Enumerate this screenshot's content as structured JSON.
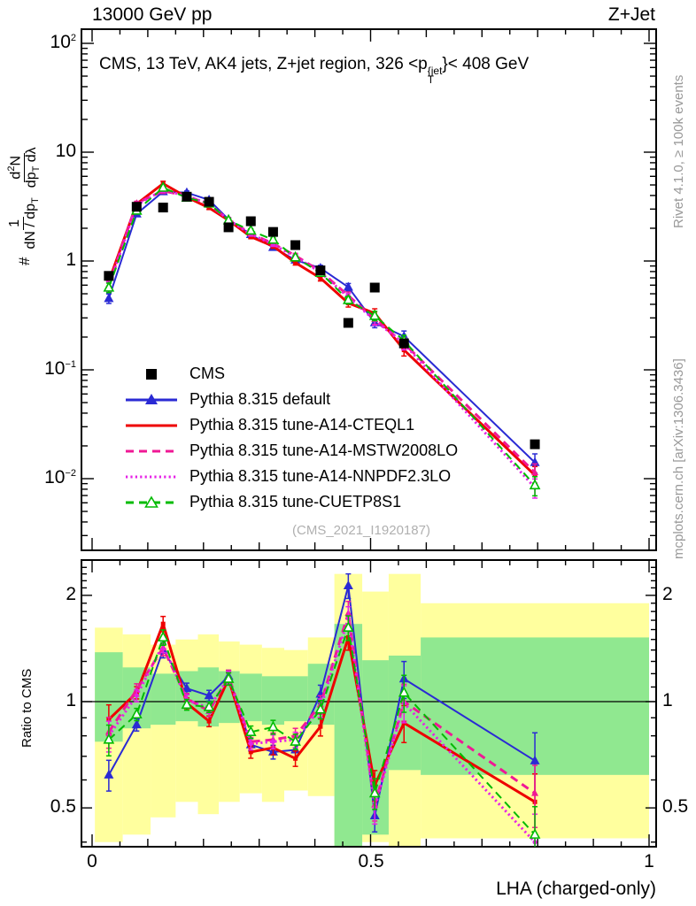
{
  "header": {
    "beam": "13000 GeV pp",
    "process": "Z+Jet"
  },
  "title": {
    "pre": "CMS, 13 TeV, AK4 jets, Z+jet region, 326 <p",
    "sup": "{jet",
    "sub": "T",
    "post": "}< 408 GeV"
  },
  "watermark": "(CMS_2021_I1920187)",
  "side_texts": {
    "rivet": "Rivet 4.1.0, ≥ 100k events",
    "mcplots": "mcplots.cern.ch [arXiv:1306.3436]"
  },
  "y_axis_label": {
    "hash": "#",
    "f1_num": "1",
    "f1_den_pre": "dN / dp",
    "f1_den_sub": "T",
    "f2_num_pre": "d",
    "f2_num_sup": "2",
    "f2_num_post": "N",
    "f2_den_pre": "dp",
    "f2_den_sub": "T",
    "f2_den_post": " dλ"
  },
  "ratio_axis_label": "Ratio to CMS",
  "x_axis_label": "LHA (charged-only)",
  "axes": {
    "main_y_tick_labels": [
      {
        "base": "10",
        "exp": "2",
        "value": 100
      },
      {
        "base": "10",
        "exp": "",
        "value": 10
      },
      {
        "base": "1",
        "exp": "",
        "value": 1
      },
      {
        "base": "10",
        "exp": "−1",
        "value": 0.1
      },
      {
        "base": "10",
        "exp": "−2",
        "value": 0.01
      }
    ],
    "ratio_tick_labels": [
      {
        "text": "2",
        "value": 2
      },
      {
        "text": "1",
        "value": 1
      },
      {
        "text": "0.5",
        "value": 0.5
      }
    ],
    "x_tick_labels": [
      {
        "text": "0",
        "value": 0
      },
      {
        "text": "0.5",
        "value": 0.5
      },
      {
        "text": "1",
        "value": 1
      }
    ]
  },
  "legend": {
    "items": [
      {
        "label": "CMS",
        "color": "#000000",
        "line": "none",
        "marker": "square-filled"
      },
      {
        "label": "Pythia 8.315 default",
        "color": "#2a2ad4",
        "line": "solid",
        "marker": "triangle-filled"
      },
      {
        "label": "Pythia 8.315 tune-A14-CTEQL1",
        "color": "#ee0000",
        "line": "solid",
        "marker": "none"
      },
      {
        "label": "Pythia 8.315 tune-A14-MSTW2008LO",
        "color": "#f01895",
        "line": "dashed",
        "marker": "none"
      },
      {
        "label": "Pythia 8.315 tune-A14-NNPDF2.3LO",
        "color": "#e622e6",
        "line": "dotted",
        "marker": "none"
      },
      {
        "label": "Pythia 8.315 tune-CUETP8S1",
        "color": "#00bb00",
        "line": "dashed",
        "marker": "triangle-open"
      }
    ]
  },
  "chart_data": {
    "type": "line",
    "title": "CMS, 13 TeV, AK4 jets, Z+jet region, 326 < pT{jet} < 408 GeV",
    "xlabel": "LHA (charged-only)",
    "ylabel": "# 1/(dN/dpT) d2N/(dpT dlambda)",
    "ratio_ylabel": "Ratio to CMS",
    "x_range": [
      0,
      1
    ],
    "main_y_log_range": [
      0.0022,
      135
    ],
    "ratio_y_log_range": [
      0.388,
      2.52
    ],
    "bin_edges": [
      0.005,
      0.055,
      0.105,
      0.15,
      0.19,
      0.2275,
      0.265,
      0.305,
      0.345,
      0.3875,
      0.435,
      0.485,
      0.5325,
      0.59,
      1.0
    ],
    "bin_centers": [
      0.03,
      0.08,
      0.1275,
      0.17,
      0.21,
      0.245,
      0.285,
      0.325,
      0.365,
      0.41,
      0.46,
      0.5075,
      0.56,
      0.795
    ],
    "cms": {
      "name": "CMS",
      "color": "#000000",
      "values": [
        0.73,
        3.15,
        3.1,
        3.9,
        3.5,
        2.04,
        2.32,
        1.85,
        1.4,
        0.82,
        0.27,
        0.57,
        0.175,
        0.0207
      ]
    },
    "series": [
      {
        "name": "Pythia 8.315 default",
        "color": "#2a2ad4",
        "dash": "solid",
        "marker": "triangle-filled",
        "width": 2,
        "ratios": [
          0.62,
          0.86,
          1.4,
          1.09,
          1.04,
          1.18,
          0.755,
          0.72,
          0.73,
          1.05,
          2.13,
          0.475,
          1.16,
          0.68
        ]
      },
      {
        "name": "Pythia 8.315 tune-A14-CTEQL1",
        "color": "#ee0000",
        "dash": "solid",
        "marker": "square-small",
        "width": 3,
        "ratios": [
          0.89,
          1.06,
          1.66,
          0.99,
          0.88,
          1.16,
          0.72,
          0.74,
          0.69,
          0.85,
          1.52,
          0.58,
          0.87,
          0.52
        ]
      },
      {
        "name": "Pythia 8.315 tune-A14-MSTW2008LO",
        "color": "#f01895",
        "dash": "dashed",
        "marker": "triangle-small",
        "width": 3,
        "ratios": [
          0.82,
          1.08,
          1.42,
          1.02,
          0.94,
          1.18,
          0.77,
          0.78,
          0.8,
          0.98,
          1.78,
          0.51,
          1.0,
          0.55
        ]
      },
      {
        "name": "Pythia 8.315 tune-A14-NNPDF2.3LO",
        "color": "#e622e6",
        "dash": "dotted",
        "marker": "circle-small",
        "width": 3,
        "ratios": [
          0.8,
          1.04,
          1.45,
          1.01,
          0.96,
          1.17,
          0.76,
          0.77,
          0.78,
          0.96,
          1.72,
          0.5,
          0.99,
          0.4
        ]
      },
      {
        "name": "Pythia 8.315 tune-CUETP8S1",
        "color": "#00bb00",
        "dash": "dashed",
        "marker": "triangle-open",
        "width": 2,
        "ratios": [
          0.78,
          0.92,
          1.52,
          0.98,
          0.965,
          1.16,
          0.82,
          0.847,
          0.77,
          0.95,
          1.62,
          0.55,
          1.06,
          0.42
        ]
      }
    ],
    "rel_errors": [
      0.1,
      0.04,
      0.05,
      0.035,
      0.035,
      0.04,
      0.04,
      0.045,
      0.05,
      0.06,
      0.08,
      0.1,
      0.12,
      0.2
    ],
    "bands": {
      "yellow_color": "#ffff9e",
      "green_color": "#90e890",
      "yellow": [
        [
          0.4,
          1.62
        ],
        [
          0.42,
          1.55
        ],
        [
          0.47,
          1.45
        ],
        [
          0.52,
          1.5
        ],
        [
          0.48,
          1.55
        ],
        [
          0.52,
          1.48
        ],
        [
          0.55,
          1.45
        ],
        [
          0.52,
          1.42
        ],
        [
          0.56,
          1.4
        ],
        [
          0.54,
          1.52
        ],
        [
          0.33,
          2.3
        ],
        [
          0.4,
          2.05
        ],
        [
          0.33,
          2.3
        ],
        [
          0.41,
          1.9
        ]
      ],
      "green": [
        [
          0.77,
          1.38
        ],
        [
          0.84,
          1.25
        ],
        [
          0.86,
          1.2
        ],
        [
          0.88,
          1.22
        ],
        [
          0.85,
          1.25
        ],
        [
          0.87,
          1.22
        ],
        [
          0.88,
          1.2
        ],
        [
          0.86,
          1.18
        ],
        [
          0.88,
          1.18
        ],
        [
          0.86,
          1.28
        ],
        [
          0.38,
          1.66
        ],
        [
          0.42,
          1.31
        ],
        [
          0.64,
          1.35
        ],
        [
          0.62,
          1.52
        ]
      ]
    }
  }
}
